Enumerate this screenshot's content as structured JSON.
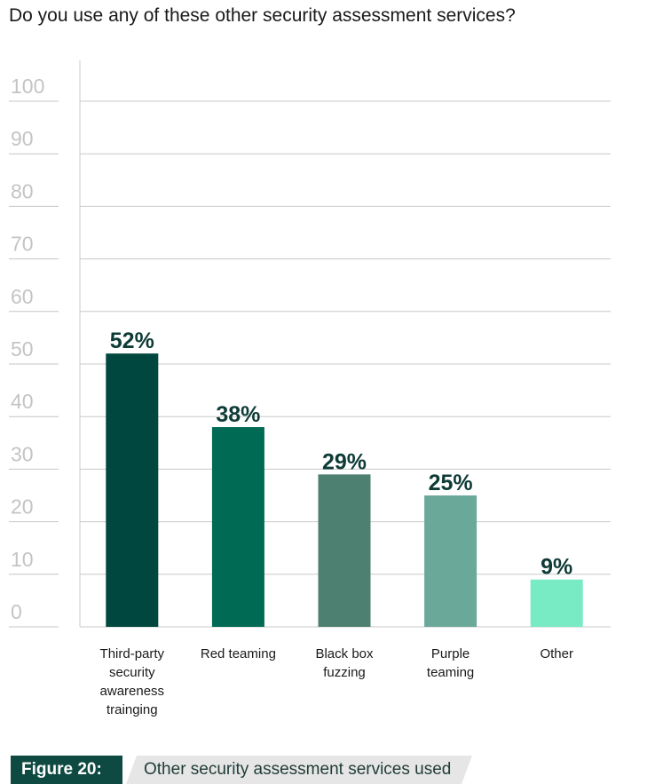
{
  "question": "Do you use any of these other security assessment services?",
  "figure": {
    "label": "Figure 20:",
    "caption": "Other security assessment services used"
  },
  "colors": {
    "bars": [
      "#004740",
      "#006a55",
      "#4d8070",
      "#6aa89a",
      "#78eac4"
    ],
    "value_label": "#0e3b36",
    "grid": "#c8c8c8",
    "tick": "#c4c4c4",
    "figure_label_bg": "#0e4a42",
    "caption_bg": "#e6e6e6"
  },
  "chart_data": {
    "type": "bar",
    "categories": [
      [
        "Third-party",
        "security",
        "awareness",
        "trainging"
      ],
      [
        "Red teaming"
      ],
      [
        "Black box",
        "fuzzing"
      ],
      [
        "Purple",
        "teaming"
      ],
      [
        "Other"
      ]
    ],
    "values": [
      52,
      38,
      29,
      25,
      9
    ],
    "value_labels": [
      "52%",
      "38%",
      "29%",
      "25%",
      "9%"
    ],
    "yticks": [
      0,
      10,
      20,
      30,
      40,
      50,
      60,
      70,
      80,
      90,
      100
    ],
    "ylim": [
      0,
      100
    ],
    "grid": true
  }
}
